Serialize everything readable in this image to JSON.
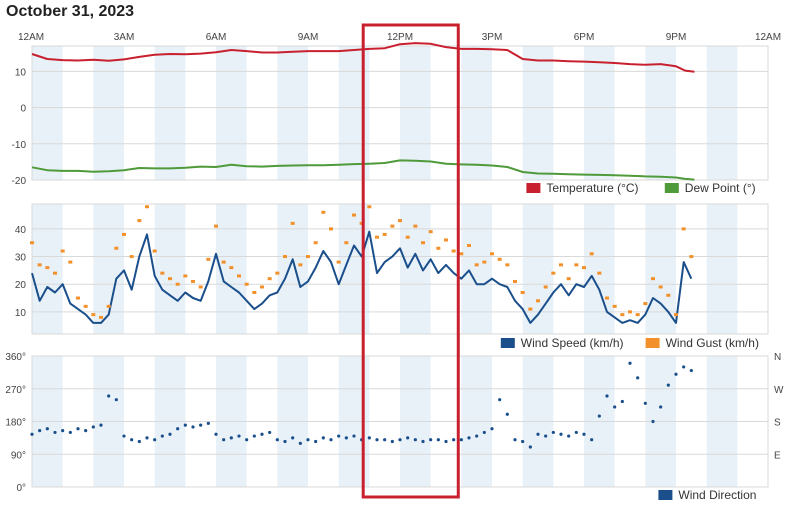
{
  "page": {
    "title": "October 31, 2023"
  },
  "colors": {
    "band": "#e8f1f8",
    "grid": "#d9d9d9",
    "temperature": "#c8202e",
    "dew_point": "#4f9a3a",
    "wind_speed": "#1a4f8c",
    "wind_gust": "#f2912b",
    "wind_direction": "#1a4f8c",
    "highlight": "#c8202e"
  },
  "chart_data": [
    {
      "type": "line",
      "x_ticks": [
        "12AM",
        "3AM",
        "6AM",
        "9AM",
        "12PM",
        "3PM",
        "6PM",
        "9PM",
        "12AM"
      ],
      "xlim": [
        0,
        24
      ],
      "ylim": [
        -20,
        17
      ],
      "y_ticks": [
        "10",
        "0",
        "-10",
        "-20"
      ],
      "y_tick_values": [
        10,
        0,
        -10,
        -20
      ],
      "series": [
        {
          "name": "Temperature (°C)",
          "color_key": "temperature",
          "x": [
            0,
            0.5,
            1,
            1.5,
            2,
            2.5,
            3,
            3.5,
            4,
            4.5,
            5,
            5.5,
            6,
            6.5,
            7,
            7.5,
            8,
            8.5,
            9,
            9.5,
            10,
            10.5,
            11,
            11.5,
            12,
            12.5,
            13,
            13.5,
            14,
            14.5,
            15,
            15.5,
            16,
            16.5,
            17,
            17.5,
            18,
            18.5,
            19,
            19.5,
            20,
            20.5,
            21,
            21.3,
            21.6
          ],
          "y": [
            14.8,
            13.4,
            13.1,
            13.0,
            13.2,
            12.9,
            13.3,
            14.0,
            14.6,
            14.8,
            14.7,
            14.9,
            15.3,
            15.9,
            15.6,
            15.2,
            15.2,
            15.4,
            15.6,
            15.6,
            15.6,
            15.9,
            16.2,
            16.4,
            17.5,
            17.8,
            17.6,
            16.7,
            16.2,
            16.2,
            16.1,
            15.9,
            13.4,
            13.0,
            13.0,
            12.8,
            12.7,
            12.5,
            12.3,
            12.0,
            11.8,
            12.0,
            11.4,
            10.2,
            9.9
          ]
        },
        {
          "name": "Dew Point (°)",
          "color_key": "dew_point",
          "x": [
            0,
            0.5,
            1,
            1.5,
            2,
            2.5,
            3,
            3.5,
            4,
            4.5,
            5,
            5.5,
            6,
            6.5,
            7,
            7.5,
            8,
            8.5,
            9,
            9.5,
            10,
            10.5,
            11,
            11.5,
            12,
            12.5,
            13,
            13.5,
            14,
            14.5,
            15,
            15.5,
            16,
            16.5,
            17,
            17.5,
            18,
            18.5,
            19,
            19.5,
            20,
            20.5,
            21,
            21.3,
            21.6
          ],
          "y": [
            -16.5,
            -17.3,
            -17.5,
            -17.5,
            -17.7,
            -17.6,
            -17.3,
            -16.7,
            -16.8,
            -16.8,
            -16.6,
            -16.3,
            -16.4,
            -15.8,
            -16.2,
            -16.3,
            -16.1,
            -16.0,
            -15.9,
            -15.9,
            -15.8,
            -15.6,
            -15.5,
            -15.3,
            -14.6,
            -14.7,
            -14.9,
            -15.5,
            -15.7,
            -15.8,
            -16.0,
            -16.4,
            -17.8,
            -18.2,
            -18.3,
            -18.4,
            -18.5,
            -18.6,
            -18.7,
            -18.8,
            -19.0,
            -19.1,
            -19.3,
            -19.7,
            -19.9
          ]
        }
      ]
    },
    {
      "type": "line",
      "x_ticks": [],
      "xlim": [
        0,
        24
      ],
      "ylim": [
        2,
        49
      ],
      "y_ticks": [
        "40",
        "30",
        "20",
        "10"
      ],
      "y_tick_values": [
        40,
        30,
        20,
        10
      ],
      "series": [
        {
          "name": "Wind Speed (km/h)",
          "color_key": "wind_speed",
          "x": [
            0,
            0.25,
            0.5,
            0.75,
            1,
            1.25,
            1.5,
            1.75,
            2,
            2.25,
            2.5,
            2.75,
            3,
            3.25,
            3.5,
            3.75,
            4,
            4.25,
            4.5,
            4.75,
            5,
            5.25,
            5.5,
            5.75,
            6,
            6.25,
            6.5,
            6.75,
            7,
            7.25,
            7.5,
            7.75,
            8,
            8.25,
            8.5,
            8.75,
            9,
            9.25,
            9.5,
            9.75,
            10,
            10.25,
            10.5,
            10.75,
            11,
            11.25,
            11.5,
            11.75,
            12,
            12.25,
            12.5,
            12.75,
            13,
            13.25,
            13.5,
            13.75,
            14,
            14.25,
            14.5,
            14.75,
            15,
            15.25,
            15.5,
            15.75,
            16,
            16.25,
            16.5,
            16.75,
            17,
            17.25,
            17.5,
            17.75,
            18,
            18.25,
            18.5,
            18.75,
            19,
            19.25,
            19.5,
            19.75,
            20,
            20.25,
            20.5,
            20.75,
            21,
            21.25,
            21.5
          ],
          "y": [
            24,
            14,
            19,
            17,
            20,
            13,
            11,
            9,
            6,
            6,
            9,
            22,
            25,
            18,
            30,
            38,
            23,
            18,
            16,
            14,
            17,
            15,
            14,
            21,
            31,
            21,
            19,
            17,
            14,
            11,
            13,
            16,
            17,
            22,
            29,
            19,
            21,
            26,
            32,
            28,
            20,
            27,
            34,
            30,
            39,
            24,
            28,
            30,
            33,
            26,
            31,
            25,
            29,
            24,
            27,
            24,
            22,
            25,
            20,
            20,
            22,
            20,
            19,
            14,
            11,
            6,
            9,
            13,
            17,
            20,
            16,
            20,
            19,
            23,
            18,
            10,
            8,
            6,
            7,
            6,
            9,
            15,
            13,
            10,
            6,
            28,
            22
          ]
        },
        {
          "name": "Wind Gust (km/h)",
          "color_key": "wind_gust",
          "x": [
            0,
            0.25,
            0.5,
            0.75,
            1,
            1.25,
            1.5,
            1.75,
            2,
            2.25,
            2.5,
            2.75,
            3,
            3.25,
            3.5,
            3.75,
            4,
            4.25,
            4.5,
            4.75,
            5,
            5.25,
            5.5,
            5.75,
            6,
            6.25,
            6.5,
            6.75,
            7,
            7.25,
            7.5,
            7.75,
            8,
            8.25,
            8.5,
            8.75,
            9,
            9.25,
            9.5,
            9.75,
            10,
            10.25,
            10.5,
            10.75,
            11,
            11.25,
            11.5,
            11.75,
            12,
            12.25,
            12.5,
            12.75,
            13,
            13.25,
            13.5,
            13.75,
            14,
            14.25,
            14.5,
            14.75,
            15,
            15.25,
            15.5,
            15.75,
            16,
            16.25,
            16.5,
            16.75,
            17,
            17.25,
            17.5,
            17.75,
            18,
            18.25,
            18.5,
            18.75,
            19,
            19.25,
            19.5,
            19.75,
            20,
            20.25,
            20.5,
            20.75,
            21,
            21.25,
            21.5
          ],
          "y": [
            35,
            27,
            26,
            24,
            32,
            28,
            15,
            12,
            9,
            8,
            12,
            33,
            38,
            30,
            43,
            48,
            32,
            24,
            22,
            20,
            23,
            21,
            19,
            29,
            41,
            28,
            26,
            23,
            20,
            17,
            19,
            22,
            24,
            30,
            42,
            27,
            30,
            35,
            46,
            40,
            28,
            35,
            45,
            42,
            48,
            37,
            38,
            41,
            43,
            37,
            41,
            35,
            39,
            33,
            36,
            32,
            31,
            34,
            27,
            28,
            31,
            29,
            27,
            21,
            17,
            11,
            14,
            19,
            24,
            27,
            22,
            27,
            26,
            31,
            24,
            15,
            12,
            9,
            10,
            9,
            13,
            22,
            19,
            16,
            9,
            40,
            30
          ]
        }
      ]
    },
    {
      "type": "scatter",
      "x_ticks": [],
      "xlim": [
        0,
        24
      ],
      "ylim": [
        0,
        360
      ],
      "y_ticks": [
        "360°",
        "270°",
        "180°",
        "90°",
        "0°"
      ],
      "y_tick_values": [
        360,
        270,
        180,
        90,
        0
      ],
      "right_ticks": [
        "N",
        "W",
        "S",
        "E"
      ],
      "right_tick_values": [
        360,
        270,
        180,
        90
      ],
      "series": [
        {
          "name": "Wind Direction",
          "color_key": "wind_direction",
          "x": [
            0,
            0.25,
            0.5,
            0.75,
            1,
            1.25,
            1.5,
            1.75,
            2,
            2.25,
            2.5,
            2.75,
            3,
            3.25,
            3.5,
            3.75,
            4,
            4.25,
            4.5,
            4.75,
            5,
            5.25,
            5.5,
            5.75,
            6,
            6.25,
            6.5,
            6.75,
            7,
            7.25,
            7.5,
            7.75,
            8,
            8.25,
            8.5,
            8.75,
            9,
            9.25,
            9.5,
            9.75,
            10,
            10.25,
            10.5,
            10.75,
            11,
            11.25,
            11.5,
            11.75,
            12,
            12.25,
            12.5,
            12.75,
            13,
            13.25,
            13.5,
            13.75,
            14,
            14.25,
            14.5,
            14.75,
            15,
            15.25,
            15.5,
            15.75,
            16,
            16.25,
            16.5,
            16.75,
            17,
            17.25,
            17.5,
            17.75,
            18,
            18.25,
            18.5,
            18.75,
            19,
            19.25,
            19.5,
            19.75,
            20,
            20.25,
            20.5,
            20.75,
            21,
            21.25,
            21.5
          ],
          "y": [
            145,
            155,
            160,
            150,
            155,
            150,
            160,
            155,
            165,
            170,
            250,
            240,
            140,
            130,
            125,
            135,
            130,
            140,
            145,
            160,
            170,
            165,
            170,
            175,
            145,
            130,
            135,
            140,
            130,
            140,
            145,
            150,
            130,
            125,
            135,
            120,
            130,
            125,
            135,
            130,
            140,
            135,
            140,
            130,
            135,
            130,
            130,
            125,
            130,
            135,
            130,
            125,
            130,
            130,
            125,
            130,
            130,
            135,
            140,
            150,
            160,
            240,
            200,
            130,
            125,
            110,
            145,
            140,
            150,
            145,
            140,
            150,
            145,
            130,
            195,
            250,
            220,
            235,
            340,
            300,
            230,
            180,
            220,
            280,
            310,
            330,
            320
          ]
        }
      ]
    }
  ],
  "legends": [
    {
      "items": [
        {
          "label": "Temperature (°C)",
          "color_key": "temperature"
        },
        {
          "label": "Dew Point (°)",
          "color_key": "dew_point"
        }
      ]
    },
    {
      "items": [
        {
          "label": "Wind Speed (km/h)",
          "color_key": "wind_speed"
        },
        {
          "label": "Wind Gust (km/h)",
          "color_key": "wind_gust"
        }
      ]
    },
    {
      "items": [
        {
          "label": "Wind Direction",
          "color_key": "wind_direction"
        }
      ]
    }
  ],
  "highlight": {
    "x_start": 10.8,
    "x_end": 13.9,
    "label": ""
  }
}
